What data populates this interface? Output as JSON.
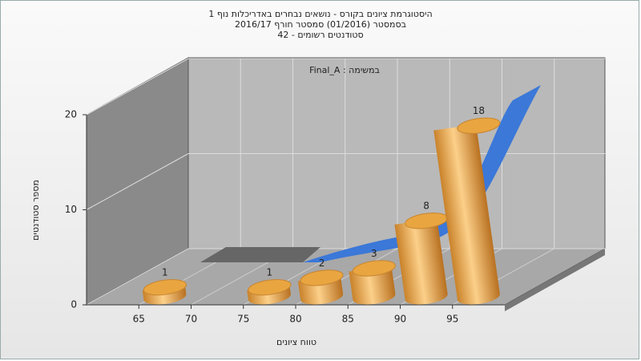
{
  "chart_data": {
    "type": "histogram",
    "title": [
      "היסטוגרמת ציונים בקורס - נושאים נבחרים באדריכלות נוף 1",
      "בסמסטר  (01/2016)  סמסטר חורף 2016/17",
      "סטודנטים רשומים - 42"
    ],
    "annotation": "במשימה : Final_A",
    "x_label": "טווח ציונים",
    "y_label": "מספר סטודנטים",
    "bins": [
      65,
      70,
      75,
      80,
      85,
      90,
      95,
      100
    ],
    "values": [
      1,
      0,
      1,
      2,
      3,
      8,
      18
    ],
    "color": "#e8a040",
    "xlim": [
      60,
      100
    ],
    "xticks": [
      65,
      70,
      75,
      80,
      85,
      90,
      95
    ],
    "ylim": [
      0,
      20
    ],
    "yticks": [
      0,
      10,
      20
    ],
    "grid": true
  }
}
